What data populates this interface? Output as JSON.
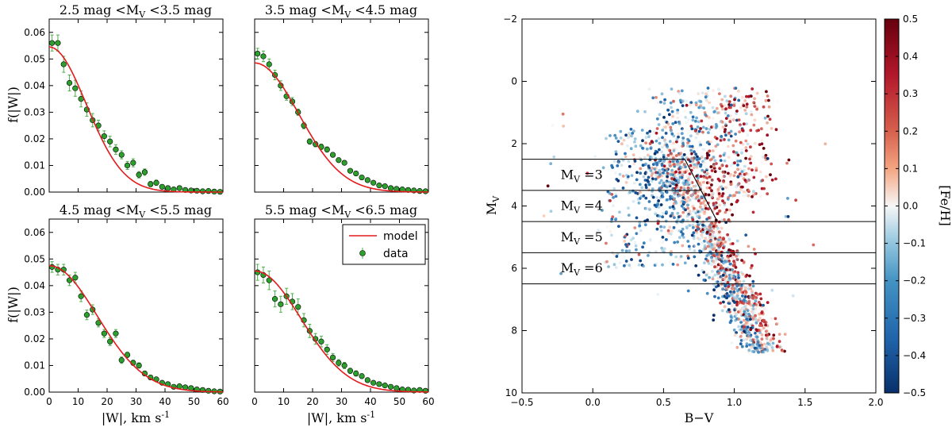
{
  "chart_data": [
    {
      "type": "scatter",
      "title": "2.5 mag <M",
      "title_sub": "V",
      "title_tail": " <3.5 mag",
      "xlabel": "|W|, km s",
      "xlabel_sup": "-1",
      "ylabel": "f(|W|)",
      "xlim": [
        0,
        60
      ],
      "ylim": [
        0,
        0.065
      ],
      "xticks": [
        "0",
        "10",
        "20",
        "30",
        "40",
        "50",
        "60"
      ],
      "yticks": [
        "0.00",
        "0.01",
        "0.02",
        "0.03",
        "0.04",
        "0.05",
        "0.06"
      ],
      "series": [
        {
          "name": "model",
          "kind": "line",
          "sigma": 12.8,
          "amp": 0.0545
        },
        {
          "name": "data",
          "kind": "points",
          "x": [
            1,
            3,
            5,
            7,
            9,
            11,
            13,
            15,
            17,
            19,
            21,
            23,
            25,
            27,
            29,
            31,
            33,
            35,
            37,
            39,
            41,
            43,
            45,
            47,
            49,
            51,
            53,
            55,
            57,
            59
          ],
          "y": [
            0.056,
            0.056,
            0.048,
            0.041,
            0.039,
            0.035,
            0.031,
            0.027,
            0.025,
            0.021,
            0.019,
            0.016,
            0.014,
            0.01,
            0.011,
            0.0065,
            0.0075,
            0.003,
            0.0035,
            0.002,
            0.0015,
            0.001,
            0.0015,
            0.0008,
            0.0006,
            0.0005,
            0.0003,
            0.0004,
            0.0002,
            0.0001
          ],
          "err": [
            0.003,
            0.003,
            0.003,
            0.003,
            0.003,
            0.003,
            0.0025,
            0.0025,
            0.002,
            0.002,
            0.002,
            0.0018,
            0.0015,
            0.0015,
            0.0015,
            0.0012,
            0.0012,
            0.001,
            0.001,
            0.0008,
            0.0008,
            0.0006,
            0.0006,
            0.0005,
            0.0004,
            0.0004,
            0.0003,
            0.0003,
            0.0002,
            0.0002
          ]
        }
      ]
    },
    {
      "type": "scatter",
      "title": "3.5 mag <M",
      "title_sub": "V",
      "title_tail": " <4.5 mag",
      "xlabel": "|W|, km s",
      "xlabel_sup": "-1",
      "ylabel": "",
      "xlim": [
        0,
        60
      ],
      "ylim": [
        0,
        0.065
      ],
      "xticks": [
        "0",
        "10",
        "20",
        "30",
        "40",
        "50",
        "60"
      ],
      "yticks": [],
      "series": [
        {
          "name": "model",
          "kind": "line",
          "sigma": 15.2,
          "amp": 0.0485
        },
        {
          "name": "data",
          "kind": "points",
          "x": [
            1,
            3,
            5,
            7,
            9,
            11,
            13,
            15,
            17,
            19,
            21,
            23,
            25,
            27,
            29,
            31,
            33,
            35,
            37,
            39,
            41,
            43,
            45,
            47,
            49,
            51,
            53,
            55,
            57,
            59
          ],
          "y": [
            0.052,
            0.051,
            0.048,
            0.044,
            0.04,
            0.036,
            0.034,
            0.03,
            0.025,
            0.019,
            0.018,
            0.017,
            0.016,
            0.014,
            0.012,
            0.011,
            0.008,
            0.007,
            0.0055,
            0.0045,
            0.0035,
            0.0025,
            0.0022,
            0.0015,
            0.0012,
            0.001,
            0.0008,
            0.0006,
            0.0004,
            0.0003
          ],
          "err": [
            0.002,
            0.002,
            0.002,
            0.0018,
            0.0018,
            0.0015,
            0.0015,
            0.0012,
            0.0012,
            0.001,
            0.001,
            0.001,
            0.001,
            0.0009,
            0.0008,
            0.0008,
            0.0007,
            0.0006,
            0.0006,
            0.0005,
            0.0005,
            0.0004,
            0.0004,
            0.0003,
            0.0003,
            0.0003,
            0.0002,
            0.0002,
            0.0002,
            0.0002
          ]
        }
      ]
    },
    {
      "type": "scatter",
      "title": "4.5 mag <M",
      "title_sub": "V",
      "title_tail": " <5.5 mag",
      "xlabel": "|W|, km s",
      "xlabel_sup": "-1",
      "ylabel": "f(|W|)",
      "xlim": [
        0,
        60
      ],
      "ylim": [
        0,
        0.065
      ],
      "xticks": [
        "0",
        "10",
        "20",
        "30",
        "40",
        "50",
        "60"
      ],
      "yticks": [
        "0.00",
        "0.01",
        "0.02",
        "0.03",
        "0.04",
        "0.05",
        "0.06"
      ],
      "series": [
        {
          "name": "model",
          "kind": "line",
          "sigma": 16.5,
          "amp": 0.0475
        },
        {
          "name": "data",
          "kind": "points",
          "x": [
            1,
            3,
            5,
            7,
            9,
            11,
            13,
            15,
            17,
            19,
            21,
            23,
            25,
            27,
            29,
            31,
            33,
            35,
            37,
            39,
            41,
            43,
            45,
            47,
            49,
            51,
            53,
            55,
            57,
            59
          ],
          "y": [
            0.047,
            0.046,
            0.046,
            0.042,
            0.043,
            0.036,
            0.029,
            0.031,
            0.026,
            0.022,
            0.019,
            0.022,
            0.012,
            0.014,
            0.011,
            0.01,
            0.007,
            0.0055,
            0.0048,
            0.0035,
            0.003,
            0.002,
            0.0022,
            0.0018,
            0.0015,
            0.001,
            0.0008,
            0.0005,
            0.0003,
            0.0002
          ],
          "err": [
            0.002,
            0.002,
            0.002,
            0.002,
            0.002,
            0.002,
            0.0018,
            0.0018,
            0.0015,
            0.0015,
            0.0015,
            0.0015,
            0.0012,
            0.001,
            0.001,
            0.001,
            0.0009,
            0.0008,
            0.0007,
            0.0006,
            0.0005,
            0.0005,
            0.0004,
            0.0004,
            0.0003,
            0.0003,
            0.0003,
            0.0002,
            0.0002,
            0.0002
          ]
        }
      ]
    },
    {
      "type": "scatter",
      "title": "5.5 mag <M",
      "title_sub": "V",
      "title_tail": " <6.5 mag",
      "xlabel": "|W|, km s",
      "xlabel_sup": "-1",
      "ylabel": "",
      "xlim": [
        0,
        60
      ],
      "ylim": [
        0,
        0.065
      ],
      "xticks": [
        "0",
        "10",
        "20",
        "30",
        "40",
        "50",
        "60"
      ],
      "yticks": [],
      "legend": {
        "placement": "top-right",
        "entries": [
          "model",
          "data"
        ]
      },
      "series": [
        {
          "name": "model",
          "kind": "line",
          "sigma": 16.0,
          "amp": 0.0455
        },
        {
          "name": "data",
          "kind": "points",
          "x": [
            1,
            3,
            5,
            7,
            9,
            11,
            13,
            15,
            17,
            19,
            21,
            23,
            25,
            27,
            29,
            31,
            33,
            35,
            37,
            39,
            41,
            43,
            45,
            47,
            49,
            51,
            53,
            55,
            57,
            59
          ],
          "y": [
            0.045,
            0.044,
            0.042,
            0.035,
            0.033,
            0.036,
            0.034,
            0.032,
            0.027,
            0.023,
            0.02,
            0.019,
            0.016,
            0.013,
            0.011,
            0.01,
            0.008,
            0.007,
            0.006,
            0.0045,
            0.0035,
            0.003,
            0.0025,
            0.002,
            0.0015,
            0.001,
            0.0009,
            0.0006,
            0.0008,
            0.0005
          ],
          "err": [
            0.003,
            0.003,
            0.0035,
            0.003,
            0.003,
            0.003,
            0.003,
            0.003,
            0.0025,
            0.0025,
            0.002,
            0.002,
            0.0018,
            0.0015,
            0.0012,
            0.0012,
            0.001,
            0.001,
            0.0009,
            0.0008,
            0.0007,
            0.0006,
            0.0005,
            0.0005,
            0.0004,
            0.0004,
            0.0003,
            0.0003,
            0.0003,
            0.0002
          ]
        }
      ]
    },
    {
      "type": "scatter",
      "title": "",
      "xlabel": "B−V",
      "ylabel": "M",
      "ylabel_sub": "V",
      "xlim": [
        -0.5,
        2.0
      ],
      "ylim": [
        10,
        -2
      ],
      "xticks": [
        "−0.5",
        "0.0",
        "0.5",
        "1.0",
        "1.5",
        "2.0"
      ],
      "yticks": [
        "−2",
        "0",
        "2",
        "4",
        "6",
        "8",
        "10"
      ],
      "colorbar": {
        "label": "[Fe/H]",
        "range": [
          -0.5,
          0.5
        ],
        "ticks": [
          "−0.5",
          "−0.4",
          "−0.3",
          "−0.2",
          "−0.1",
          "0.0",
          "0.1",
          "0.2",
          "0.3",
          "0.4",
          "0.5"
        ],
        "low_color": "#08306b",
        "mid_color": "#f7f7f7",
        "high_color": "#67000d"
      },
      "bin_lines_mv": [
        2.5,
        3.5,
        4.5,
        5.5,
        6.5
      ],
      "turnoff_bv": [
        [
          0.65,
          2.5
        ],
        [
          0.88,
          4.5
        ]
      ],
      "annotations": [
        {
          "text": "M",
          "sub": "V",
          "tail": " =3",
          "at": [
            -0.35,
            3.0
          ]
        },
        {
          "text": "M",
          "sub": "V",
          "tail": " =4",
          "at": [
            -0.35,
            4.0
          ]
        },
        {
          "text": "M",
          "sub": "V",
          "tail": " =5",
          "at": [
            -0.35,
            5.0
          ]
        },
        {
          "text": "M",
          "sub": "V",
          "tail": " =6",
          "at": [
            -0.35,
            6.0
          ]
        }
      ],
      "n_points": 2200,
      "seed": 7
    }
  ]
}
